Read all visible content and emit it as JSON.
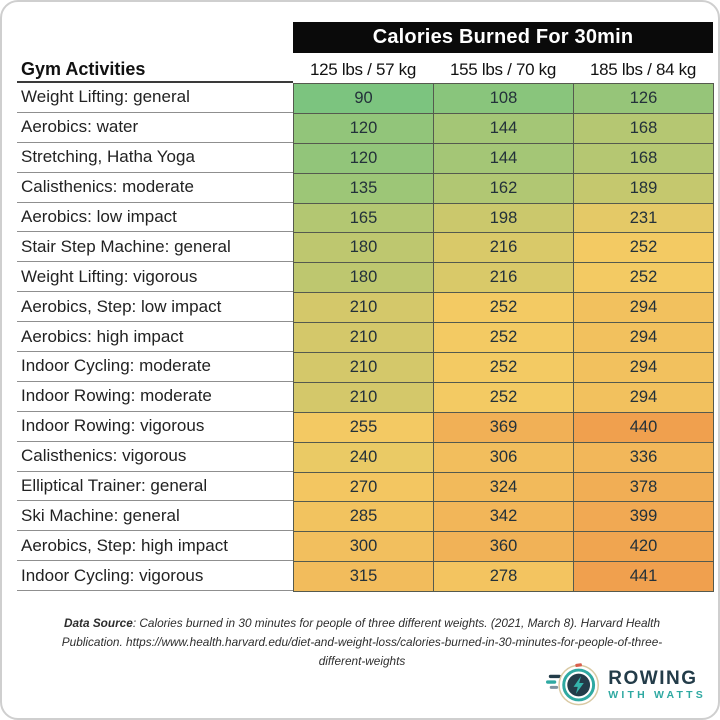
{
  "chart_data": {
    "type": "table",
    "title": "Calories Burned For 30min",
    "row_header": "Gym Activities",
    "columns": [
      "125 lbs / 57 kg",
      "155 lbs / 70 kg",
      "185 lbs / 84 kg"
    ],
    "rows": [
      {
        "activity": "Weight Lifting: general",
        "values": [
          90,
          108,
          126
        ]
      },
      {
        "activity": "Aerobics: water",
        "values": [
          120,
          144,
          168
        ]
      },
      {
        "activity": "Stretching, Hatha Yoga",
        "values": [
          120,
          144,
          168
        ]
      },
      {
        "activity": "Calisthenics: moderate",
        "values": [
          135,
          162,
          189
        ]
      },
      {
        "activity": "Aerobics: low impact",
        "values": [
          165,
          198,
          231
        ]
      },
      {
        "activity": "Stair Step Machine: general",
        "values": [
          180,
          216,
          252
        ]
      },
      {
        "activity": "Weight Lifting: vigorous",
        "values": [
          180,
          216,
          252
        ]
      },
      {
        "activity": "Aerobics, Step: low impact",
        "values": [
          210,
          252,
          294
        ]
      },
      {
        "activity": "Aerobics: high impact",
        "values": [
          210,
          252,
          294
        ]
      },
      {
        "activity": "Indoor Cycling: moderate",
        "values": [
          210,
          252,
          294
        ]
      },
      {
        "activity": "Indoor Rowing: moderate",
        "values": [
          210,
          252,
          294
        ]
      },
      {
        "activity": "Indoor Rowing: vigorous",
        "values": [
          255,
          369,
          440
        ]
      },
      {
        "activity": "Calisthenics: vigorous",
        "values": [
          240,
          306,
          336
        ]
      },
      {
        "activity": "Elliptical Trainer: general",
        "values": [
          270,
          324,
          378
        ]
      },
      {
        "activity": "Ski Machine: general",
        "values": [
          285,
          342,
          399
        ]
      },
      {
        "activity": "Aerobics, Step: high impact",
        "values": [
          300,
          360,
          420
        ]
      },
      {
        "activity": "Indoor Cycling: vigorous",
        "values": [
          315,
          278,
          441
        ]
      }
    ],
    "heatmap": {
      "min": 90,
      "min_color": "#7cc47f",
      "mid": 252,
      "mid_color": "#f3ca63",
      "max": 441,
      "max_color": "#f0a04e"
    },
    "layout": {
      "title_bar_color": "#0a0a0a",
      "title_text_color": "#ffffff",
      "grid": "on"
    }
  },
  "footer": {
    "source_label": "Data Source",
    "source_text": ": Calories burned in 30 minutes for people of three different weights. (2021, March 8). Harvard Health Publication. https://www.health.harvard.edu/diet-and-weight-loss/calories-burned-in-30-minutes-for-people-of-three-different-weights"
  },
  "logo": {
    "line1": "ROWING",
    "line2": "WITH WATTS",
    "navy": "#233c49",
    "teal": "#2fa9a2",
    "tan": "#d9c9a3"
  }
}
